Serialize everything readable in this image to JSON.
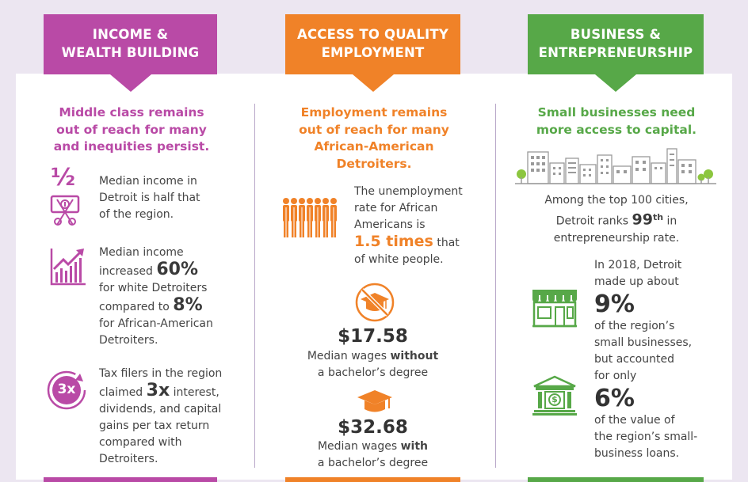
{
  "colors": {
    "purple": "#b94aa6",
    "orange": "#f08228",
    "green": "#57a848",
    "background": "#ece6f1"
  },
  "col1": {
    "banner": [
      "INCOME &",
      "WEALTH BUILDING"
    ],
    "headline": [
      "Middle class remains",
      "out of reach for many",
      "and inequities persist."
    ],
    "item1": {
      "icon": "half-money-icon",
      "glyph": "½",
      "lines": [
        "Median income in",
        "Detroit is half that",
        "of the region."
      ]
    },
    "item2": {
      "icon": "growth-chart-icon",
      "l1": "Median income",
      "l2_pre": "increased",
      "l2_big": "60%",
      "l3": "for white Detroiters",
      "l4_pre": "compared to",
      "l4_big": "8%",
      "l5": "for African-American",
      "l6": "Detroiters."
    },
    "item3": {
      "icon": "three-x-icon",
      "badge": "3x",
      "l1": "Tax filers in the region",
      "l2_pre": "claimed",
      "l2_big": "3x",
      "l2_post": "interest,",
      "l3": "dividends, and capital",
      "l4": "gains per tax return",
      "l5": "compared with",
      "l6": "Detroiters."
    }
  },
  "col2": {
    "banner": [
      "ACCESS TO QUALITY",
      "EMPLOYMENT"
    ],
    "headline": [
      "Employment remains",
      "out of reach for many",
      "African-American",
      "Detroiters."
    ],
    "item1": {
      "icon": "people-line-icon",
      "l1": "The unemployment",
      "l2": "rate for African",
      "l3": "Americans is",
      "l4_big": "1.5 times",
      "l4_post": "that",
      "l5": "of white people."
    },
    "item2": {
      "icon": "graduation-cap-crossed-icon",
      "value": "$17.58",
      "l1_pre": "Median wages",
      "l1_bold": "without",
      "l2": "a bachelor’s degree"
    },
    "item3": {
      "icon": "graduation-cap-icon",
      "value": "$32.68",
      "l1_pre": "Median wages",
      "l1_bold": "with",
      "l2": "a bachelor’s degree"
    }
  },
  "col3": {
    "banner": [
      "BUSINESS &",
      "ENTREPRENEURSHIP"
    ],
    "headline": [
      "Small businesses need",
      "more access to capital."
    ],
    "skyline_icon": "city-skyline-icon",
    "item1": {
      "l1": "Among the top 100 cities,",
      "l2_pre": "Detroit ranks",
      "l2_big": "99",
      "l2_sup": "th",
      "l2_post": "in",
      "l3": "entrepreneurship rate."
    },
    "item2": {
      "icon": "storefront-icon",
      "l1": "In 2018, Detroit",
      "l2": "made up about",
      "big": "9%",
      "l3": "of the region’s",
      "l4": "small businesses,",
      "l5": "but accounted",
      "l6": "for only"
    },
    "item3": {
      "icon": "bank-icon",
      "big": "6%",
      "l1": "of the value of",
      "l2": "the region’s small-",
      "l3": "business loans."
    }
  }
}
